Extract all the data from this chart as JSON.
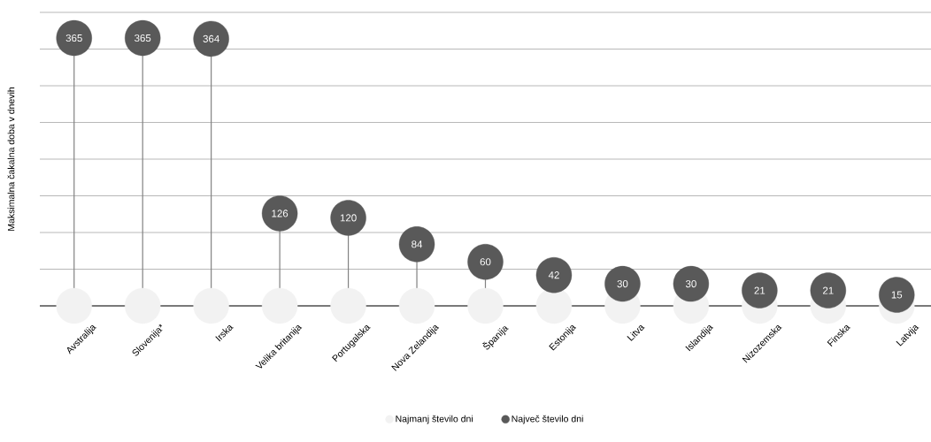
{
  "chart_data": {
    "type": "lollipop",
    "ylabel": "Maksimalna čakalna doba v dnevih",
    "categories": [
      "Avstralija",
      "Slovenija*",
      "Irska",
      "Velika britanija",
      "Portugalska",
      "Nova Zelandija",
      "Španija",
      "Estonija",
      "Litva",
      "Islandija",
      "Nizozemska",
      "Finska",
      "Latvija"
    ],
    "series": [
      {
        "name": "Najmanj število dni",
        "type": "scatter",
        "color": "#f2f2f2",
        "values": [
          0,
          0,
          0,
          0,
          0,
          0,
          0,
          0,
          0,
          0,
          0,
          0,
          0
        ]
      },
      {
        "name": "Največ število dni",
        "type": "lollipop",
        "color": "#595959",
        "values": [
          365,
          365,
          364,
          126,
          120,
          84,
          60,
          42,
          30,
          30,
          21,
          21,
          15
        ],
        "value_labels": [
          "365",
          "365",
          "364",
          "126",
          "120",
          "84",
          "60",
          "42",
          "30",
          "30",
          "21",
          "21",
          "15"
        ]
      }
    ],
    "ylim": [
      0,
      400
    ],
    "yticks": [
      {
        "value": 0,
        "label": null
      },
      {
        "value": 50,
        "label": null
      },
      {
        "value": 100,
        "label": null
      },
      {
        "value": 150,
        "label": null
      },
      {
        "value": 200,
        "label": null
      },
      {
        "value": 250,
        "label": null
      },
      {
        "value": 300,
        "label": null
      },
      {
        "value": 350,
        "label": null
      },
      {
        "value": 400,
        "label": null
      }
    ],
    "tick_labels": "x",
    "grid": "y",
    "legend": "bottom",
    "marker": "circle"
  }
}
